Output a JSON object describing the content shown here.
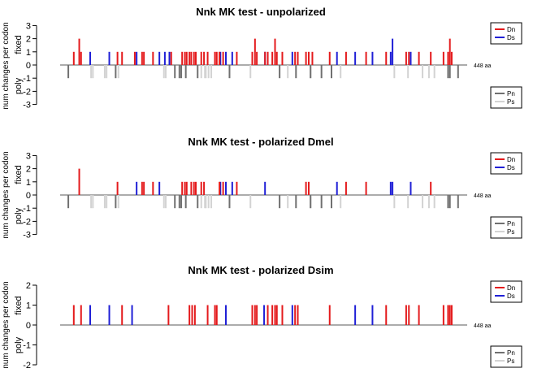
{
  "colors": {
    "Dn": "#e41a1c",
    "Ds": "#1f1fd6",
    "Pn": "#707070",
    "Ps": "#d3d3d3",
    "baseline": "#7a7a7a"
  },
  "chart_data": [
    {
      "type": "bar",
      "title": "Nnk MK test - unpolarized",
      "ylabel_outer": "num changes per codon",
      "ylabel_upper": "fixed",
      "ylabel_lower": "poly",
      "ylim": [
        -3,
        3
      ],
      "yticks": [
        3,
        2,
        1,
        0,
        -1,
        -2,
        -3
      ],
      "xlim": [
        1,
        448
      ],
      "length_label": "448 aa",
      "legend_fixed": [
        "Dn",
        "Ds"
      ],
      "legend_poly": [
        "Pn",
        "Ps"
      ],
      "Dn": [
        [
          16,
          1
        ],
        [
          22,
          2
        ],
        [
          24,
          1
        ],
        [
          64,
          1
        ],
        [
          69,
          1
        ],
        [
          83,
          1
        ],
        [
          91,
          1
        ],
        [
          93,
          1
        ],
        [
          103,
          1
        ],
        [
          123,
          1
        ],
        [
          135,
          1
        ],
        [
          138,
          1
        ],
        [
          140,
          1
        ],
        [
          143,
          1
        ],
        [
          145,
          1
        ],
        [
          148,
          1
        ],
        [
          150,
          1
        ],
        [
          156,
          1
        ],
        [
          159,
          1
        ],
        [
          163,
          1
        ],
        [
          171,
          1
        ],
        [
          173,
          1
        ],
        [
          176,
          1
        ],
        [
          180,
          1
        ],
        [
          195,
          1
        ],
        [
          212,
          1
        ],
        [
          215,
          2
        ],
        [
          217,
          1
        ],
        [
          226,
          1
        ],
        [
          229,
          1
        ],
        [
          234,
          1
        ],
        [
          237,
          2
        ],
        [
          239,
          1
        ],
        [
          245,
          1
        ],
        [
          259,
          1
        ],
        [
          262,
          1
        ],
        [
          271,
          1
        ],
        [
          274,
          1
        ],
        [
          278,
          1
        ],
        [
          297,
          1
        ],
        [
          315,
          1
        ],
        [
          337,
          1
        ],
        [
          359,
          1
        ],
        [
          381,
          1
        ],
        [
          384,
          1
        ],
        [
          395,
          1
        ],
        [
          408,
          1
        ],
        [
          422,
          1
        ],
        [
          427,
          1
        ],
        [
          429,
          2
        ],
        [
          431,
          1
        ]
      ],
      "Ds": [
        [
          34,
          1
        ],
        [
          55,
          1
        ],
        [
          85,
          1
        ],
        [
          110,
          1
        ],
        [
          116,
          1
        ],
        [
          121,
          1
        ],
        [
          177,
          1
        ],
        [
          183,
          1
        ],
        [
          190,
          1
        ],
        [
          226,
          1
        ],
        [
          256,
          1
        ],
        [
          305,
          1
        ],
        [
          325,
          1
        ],
        [
          344,
          1
        ],
        [
          364,
          1
        ],
        [
          366,
          2
        ],
        [
          386,
          1
        ]
      ],
      "Pn": [
        [
          10,
          1
        ],
        [
          62,
          1
        ],
        [
          127,
          1
        ],
        [
          132,
          1
        ],
        [
          134,
          1
        ],
        [
          139,
          1
        ],
        [
          152,
          1
        ],
        [
          187,
          1
        ],
        [
          242,
          1
        ],
        [
          260,
          1
        ],
        [
          276,
          1
        ],
        [
          288,
          1
        ],
        [
          299,
          1
        ],
        [
          427,
          1
        ],
        [
          429,
          1
        ],
        [
          438,
          1
        ]
      ],
      "Ps": [
        [
          35,
          1
        ],
        [
          37,
          1
        ],
        [
          50,
          1
        ],
        [
          52,
          1
        ],
        [
          65,
          1
        ],
        [
          115,
          1
        ],
        [
          117,
          1
        ],
        [
          156,
          1
        ],
        [
          160,
          1
        ],
        [
          161,
          1
        ],
        [
          164,
          1
        ],
        [
          167,
          1
        ],
        [
          210,
          1
        ],
        [
          251,
          1
        ],
        [
          276,
          1
        ],
        [
          309,
          1
        ],
        [
          368,
          1
        ],
        [
          383,
          1
        ],
        [
          399,
          1
        ],
        [
          406,
          1
        ],
        [
          412,
          1
        ]
      ]
    },
    {
      "type": "bar",
      "title": "Nnk MK test - polarized Dmel",
      "ylabel_outer": "num changes per codon",
      "ylabel_upper": "fixed",
      "ylabel_lower": "poly",
      "ylim": [
        -3,
        3
      ],
      "yticks": [
        3,
        2,
        1,
        0,
        -1,
        -2,
        -3
      ],
      "xlim": [
        1,
        448
      ],
      "length_label": "448 aa",
      "legend_fixed": [
        "Dn",
        "Ds"
      ],
      "legend_poly": [
        "Pn",
        "Ps"
      ],
      "Dn": [
        [
          22,
          2
        ],
        [
          64,
          1
        ],
        [
          91,
          1
        ],
        [
          93,
          1
        ],
        [
          103,
          1
        ],
        [
          135,
          1
        ],
        [
          138,
          1
        ],
        [
          140,
          1
        ],
        [
          145,
          1
        ],
        [
          148,
          1
        ],
        [
          150,
          1
        ],
        [
          156,
          1
        ],
        [
          159,
          1
        ],
        [
          176,
          1
        ],
        [
          180,
          1
        ],
        [
          195,
          1
        ],
        [
          271,
          1
        ],
        [
          274,
          1
        ],
        [
          315,
          1
        ],
        [
          337,
          1
        ],
        [
          408,
          1
        ]
      ],
      "Ds": [
        [
          85,
          1
        ],
        [
          110,
          1
        ],
        [
          177,
          1
        ],
        [
          183,
          1
        ],
        [
          190,
          1
        ],
        [
          226,
          1
        ],
        [
          305,
          1
        ],
        [
          364,
          1
        ],
        [
          366,
          1
        ],
        [
          386,
          1
        ]
      ],
      "Pn": [
        [
          10,
          1
        ],
        [
          62,
          1
        ],
        [
          127,
          1
        ],
        [
          132,
          1
        ],
        [
          134,
          1
        ],
        [
          139,
          1
        ],
        [
          152,
          1
        ],
        [
          187,
          1
        ],
        [
          242,
          1
        ],
        [
          260,
          1
        ],
        [
          276,
          1
        ],
        [
          288,
          1
        ],
        [
          299,
          1
        ],
        [
          427,
          1
        ],
        [
          429,
          1
        ],
        [
          438,
          1
        ]
      ],
      "Ps": [
        [
          35,
          1
        ],
        [
          37,
          1
        ],
        [
          50,
          1
        ],
        [
          52,
          1
        ],
        [
          65,
          1
        ],
        [
          115,
          1
        ],
        [
          117,
          1
        ],
        [
          156,
          1
        ],
        [
          160,
          1
        ],
        [
          161,
          1
        ],
        [
          164,
          1
        ],
        [
          167,
          1
        ],
        [
          210,
          1
        ],
        [
          251,
          1
        ],
        [
          276,
          1
        ],
        [
          309,
          1
        ],
        [
          368,
          1
        ],
        [
          383,
          1
        ],
        [
          399,
          1
        ],
        [
          406,
          1
        ],
        [
          412,
          1
        ]
      ]
    },
    {
      "type": "bar",
      "title": "Nnk MK test - polarized Dsim",
      "ylabel_outer": "num changes per codon",
      "ylabel_upper": "fixed",
      "ylabel_lower": "poly",
      "ylim": [
        -2,
        2
      ],
      "yticks": [
        2,
        1,
        0,
        -1,
        -2
      ],
      "xlim": [
        1,
        448
      ],
      "length_label": "448 aa",
      "legend_fixed": [
        "Dn",
        "Ds"
      ],
      "legend_poly": [
        "Pn",
        "Ps"
      ],
      "Dn": [
        [
          16,
          1
        ],
        [
          24,
          1
        ],
        [
          69,
          1
        ],
        [
          120,
          1
        ],
        [
          143,
          1
        ],
        [
          146,
          1
        ],
        [
          149,
          1
        ],
        [
          163,
          1
        ],
        [
          171,
          1
        ],
        [
          173,
          1
        ],
        [
          212,
          1
        ],
        [
          215,
          1
        ],
        [
          217,
          1
        ],
        [
          229,
          1
        ],
        [
          234,
          1
        ],
        [
          237,
          1
        ],
        [
          239,
          1
        ],
        [
          245,
          1
        ],
        [
          259,
          1
        ],
        [
          262,
          1
        ],
        [
          297,
          1
        ],
        [
          359,
          1
        ],
        [
          381,
          1
        ],
        [
          384,
          1
        ],
        [
          395,
          1
        ],
        [
          422,
          1
        ],
        [
          427,
          1
        ],
        [
          429,
          1
        ],
        [
          431,
          1
        ]
      ],
      "Ds": [
        [
          34,
          1
        ],
        [
          55,
          1
        ],
        [
          80,
          1
        ],
        [
          183,
          1
        ],
        [
          225,
          1
        ],
        [
          256,
          1
        ],
        [
          325,
          1
        ],
        [
          344,
          1
        ]
      ],
      "Pn": [],
      "Ps": []
    }
  ]
}
